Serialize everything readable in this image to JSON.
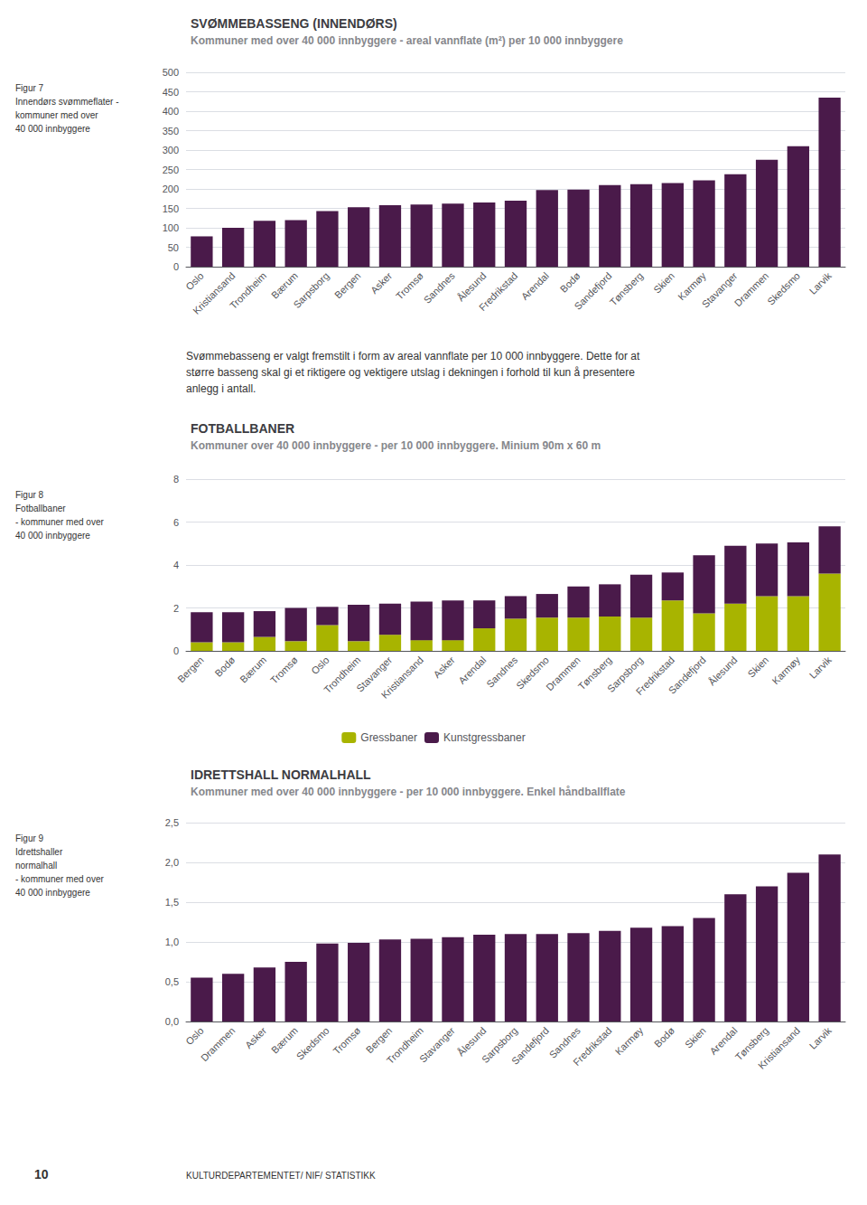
{
  "chart_data": [
    {
      "type": "bar",
      "title": "SVØMMEBASSENG (INNENDØRS)",
      "subtitle": "Kommuner med over 40 000 innbyggere - areal vannflate (m²) per 10 000 innbyggere",
      "annotations": [
        "Figur 7\nInnendørs svømmeflater -\nkommuner med over\n40 000 innbyggere",
        "Svømmebasseng er valgt fremstilt i form av areal vannflate per 10 000 innbyggere. Dette for at\nstørre basseng skal gi et riktigere og vektigere utslag i dekningen i forhold til kun å presentere\nanlegg i antall."
      ],
      "categories": [
        "Oslo",
        "Kristiansand",
        "Trondheim",
        "Bærum",
        "Sarpsborg",
        "Bergen",
        "Asker",
        "Tromsø",
        "Sandnes",
        "Ålesund",
        "Fredrikstad",
        "Arendal",
        "Bodø",
        "Sandefjord",
        "Tønsberg",
        "Skien",
        "Karmøy",
        "Stavanger",
        "Drammen",
        "Skedsmo",
        "Larvik"
      ],
      "values": [
        78,
        100,
        118,
        120,
        143,
        153,
        158,
        160,
        162,
        165,
        170,
        197,
        198,
        210,
        212,
        215,
        222,
        238,
        275,
        310,
        435
      ],
      "color": "#4a1a4a",
      "ylim": [
        0,
        500
      ],
      "yticks": [
        0,
        50,
        100,
        150,
        200,
        250,
        300,
        350,
        400,
        450,
        500
      ],
      "grid": true
    },
    {
      "type": "bar",
      "title": "FOTBALLBANER",
      "subtitle": "Kommuner over 40 000 innbyggere - per 10 000 innbyggere. Minium 90m x 60 m",
      "annotations": [
        "Figur 8\nFotballbaner\n- kommuner med over\n40 000 innbyggere"
      ],
      "categories": [
        "Bergen",
        "Bodø",
        "Bærum",
        "Tromsø",
        "Oslo",
        "Trondheim",
        "Stavanger",
        "Kristiansand",
        "Asker",
        "Arendal",
        "Sandnes",
        "Skedsmo",
        "Drammen",
        "Tønsberg",
        "Sarpsborg",
        "Fredrikstad",
        "Sandefjord",
        "Ålesund",
        "Skien",
        "Karmøy",
        "Larvik"
      ],
      "series": [
        {
          "name": "Gressbaner",
          "color": "#a8b400",
          "values": [
            0.4,
            0.4,
            0.65,
            0.45,
            1.2,
            0.45,
            0.75,
            0.5,
            0.5,
            1.05,
            1.5,
            1.55,
            1.55,
            1.6,
            1.55,
            2.35,
            1.75,
            2.2,
            2.55,
            2.55,
            3.6
          ]
        },
        {
          "name": "Kunstgressbaner",
          "color": "#4a1a4a",
          "values": [
            1.4,
            1.4,
            1.2,
            1.55,
            0.85,
            1.7,
            1.45,
            1.8,
            1.85,
            1.3,
            1.05,
            1.1,
            1.45,
            1.5,
            2.0,
            1.3,
            2.7,
            2.7,
            2.45,
            2.5,
            2.2
          ]
        }
      ],
      "stacked": true,
      "legend": "bottom",
      "ylim": [
        0,
        8
      ],
      "yticks": [
        0,
        2,
        4,
        6,
        8
      ],
      "grid": true
    },
    {
      "type": "bar",
      "title": "IDRETTSHALL NORMALHALL",
      "subtitle": "Kommuner med over 40 000 innbyggere - per 10 000 innbyggere. Enkel håndballflate",
      "annotations": [
        "Figur 9\nIdrettshaller\nnormalhall\n- kommuner med over\n40 000 innbyggere",
        "10",
        "KULTURDEPARTEMENTET/ NIF/ STATISTIKK"
      ],
      "categories": [
        "Oslo",
        "Drammen",
        "Asker",
        "Bærum",
        "Skedsmo",
        "Tromsø",
        "Bergen",
        "Trondheim",
        "Stavanger",
        "Ålesund",
        "Sarpsborg",
        "Sandefjord",
        "Sandnes",
        "Fredrikstad",
        "Karmøy",
        "Bodø",
        "Skien",
        "Arendal",
        "Tønsberg",
        "Kristiansand",
        "Larvik"
      ],
      "values": [
        0.55,
        0.6,
        0.68,
        0.75,
        0.98,
        0.99,
        1.03,
        1.04,
        1.06,
        1.09,
        1.1,
        1.1,
        1.11,
        1.14,
        1.18,
        1.2,
        1.3,
        1.6,
        1.7,
        1.87,
        2.1
      ],
      "color": "#4a1a4a",
      "ylim": [
        0,
        2.5
      ],
      "yticks": [
        {
          "value": 0.0,
          "label": "0,0"
        },
        {
          "value": 0.5,
          "label": "0,5"
        },
        {
          "value": 1.0,
          "label": "1,0"
        },
        {
          "value": 1.5,
          "label": "1,5"
        },
        {
          "value": 2.0,
          "label": "2,0"
        },
        {
          "value": 2.5,
          "label": "2,5"
        }
      ],
      "grid": true
    }
  ]
}
